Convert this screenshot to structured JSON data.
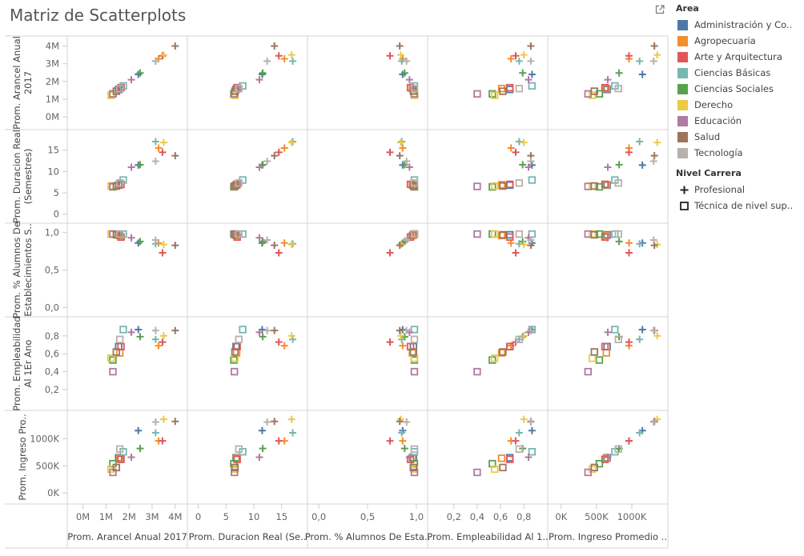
{
  "title": "Matriz de Scatterplots",
  "legend": {
    "area_title": "Area",
    "areas": [
      {
        "label": "Administración y Co..",
        "color": "#4E79A7"
      },
      {
        "label": "Agropecuaria",
        "color": "#F28E2B"
      },
      {
        "label": "Arte y Arquitectura",
        "color": "#E15759"
      },
      {
        "label": "Ciencias Básicas",
        "color": "#76B7B2"
      },
      {
        "label": "Ciencias Sociales",
        "color": "#59A14F"
      },
      {
        "label": "Derecho",
        "color": "#EDC948"
      },
      {
        "label": "Educación",
        "color": "#B07AA1"
      },
      {
        "label": "Salud",
        "color": "#9C755F"
      },
      {
        "label": "Tecnología",
        "color": "#BAB0AC"
      }
    ],
    "level_title": "Nivel Carrera",
    "levels": [
      {
        "label": "Profesional",
        "shape": "plus"
      },
      {
        "label": "Técnica de nivel sup..",
        "shape": "square"
      }
    ]
  },
  "chart_data": {
    "type": "scatter",
    "layout": "scatterplot-matrix",
    "variables": [
      {
        "key": "arancel",
        "label": "Prom. Arancel Anual 2017",
        "x_label": "Prom. Arancel Anual 2017",
        "y_label_lines": [
          "Prom. Arancel Anual",
          "2017"
        ],
        "range": [
          -400000,
          4250000
        ],
        "ticks": [
          0,
          1000000,
          2000000,
          3000000,
          4000000
        ],
        "tick_labels": [
          "0M",
          "1M",
          "2M",
          "3M",
          "4M"
        ]
      },
      {
        "key": "duracion",
        "label": "Prom. Duracion Real (Semestres)",
        "x_label": "Prom. Duracion Real (Se..",
        "y_label_lines": [
          "Prom. Duracion Real",
          "(Semestres)"
        ],
        "range": [
          -0.8,
          18.5
        ],
        "ticks": [
          0,
          5,
          10,
          15
        ],
        "tick_labels": [
          "0",
          "5",
          "10",
          "15"
        ]
      },
      {
        "key": "alumnos",
        "label": "Prom. % Alumnos De Establecimientos S..",
        "x_label": "Prom. % Alumnos De Esta..",
        "y_label_lines": [
          "Prom. % Alumnos De",
          "Establecimientos S.."
        ],
        "range": [
          -0.05,
          1.05
        ],
        "ticks": [
          0,
          0.5,
          1.0
        ],
        "tick_labels": [
          "0,0",
          "0,5",
          "1,0"
        ]
      },
      {
        "key": "empleabilidad",
        "label": "Prom. Empleabilidad Al 1Er Ano",
        "x_label": "Prom. Empleabilidad Al 1..",
        "y_label_lines": [
          "Prom. Empleabilidad",
          "Al 1Er Ano"
        ],
        "range": [
          0.03,
          0.95
        ],
        "ticks": [
          0.2,
          0.4,
          0.6,
          0.8
        ],
        "tick_labels": [
          "0,2",
          "0,4",
          "0,6",
          "0,8"
        ]
      },
      {
        "key": "ingreso",
        "label": "Prom. Ingreso Promedio",
        "x_label": "Prom. Ingreso Promedio ..",
        "y_label_lines": [
          "Prom. Ingreso Pro.."
        ],
        "range": [
          -100000,
          1420000
        ],
        "ticks": [
          0,
          500000,
          1000000
        ],
        "tick_labels": [
          "0K",
          "500K",
          "1000K"
        ]
      }
    ],
    "points": [
      {
        "area": "Administración y Co..",
        "level": "Profesional",
        "arancel": 2400000,
        "duracion": 11.5,
        "alumnos": 0.86,
        "empleabilidad": 0.87,
        "ingreso": 1150000
      },
      {
        "area": "Administración y Co..",
        "level": "Técnica de nivel sup..",
        "arancel": 1550000,
        "duracion": 6.8,
        "alumnos": 0.97,
        "empleabilidad": 0.68,
        "ingreso": 650000
      },
      {
        "area": "Agropecuaria",
        "level": "Profesional",
        "arancel": 3280000,
        "duracion": 15.5,
        "alumnos": 0.86,
        "empleabilidad": 0.69,
        "ingreso": 960000
      },
      {
        "area": "Agropecuaria",
        "level": "Técnica de nivel sup..",
        "arancel": 1600000,
        "duracion": 6.9,
        "alumnos": 0.96,
        "empleabilidad": 0.61,
        "ingreso": 640000
      },
      {
        "area": "Arte y Arquitectura",
        "level": "Profesional",
        "arancel": 3450000,
        "duracion": 14.5,
        "alumnos": 0.73,
        "empleabilidad": 0.73,
        "ingreso": 960000
      },
      {
        "area": "Arte y Arquitectura",
        "level": "Técnica de nivel sup..",
        "arancel": 1650000,
        "duracion": 7.0,
        "alumnos": 0.94,
        "empleabilidad": 0.68,
        "ingreso": 620000
      },
      {
        "area": "Ciencias Básicas",
        "level": "Profesional",
        "arancel": 3150000,
        "duracion": 17.0,
        "alumnos": 0.85,
        "empleabilidad": 0.76,
        "ingreso": 1110000
      },
      {
        "area": "Ciencias Básicas",
        "level": "Técnica de nivel sup..",
        "arancel": 1750000,
        "duracion": 8.0,
        "alumnos": 0.98,
        "empleabilidad": 0.87,
        "ingreso": 760000
      },
      {
        "area": "Ciencias Sociales",
        "level": "Profesional",
        "arancel": 2480000,
        "duracion": 11.6,
        "alumnos": 0.88,
        "empleabilidad": 0.79,
        "ingreso": 820000
      },
      {
        "area": "Ciencias Sociales",
        "level": "Técnica de nivel sup..",
        "arancel": 1300000,
        "duracion": 6.4,
        "alumnos": 0.98,
        "empleabilidad": 0.53,
        "ingreso": 540000
      },
      {
        "area": "Derecho",
        "level": "Profesional",
        "arancel": 3500000,
        "duracion": 16.8,
        "alumnos": 0.84,
        "empleabilidad": 0.8,
        "ingreso": 1360000
      },
      {
        "area": "Derecho",
        "level": "Técnica de nivel sup..",
        "arancel": 1220000,
        "duracion": 6.6,
        "alumnos": 0.98,
        "empleabilidad": 0.55,
        "ingreso": 440000
      },
      {
        "area": "Educación",
        "level": "Profesional",
        "arancel": 2100000,
        "duracion": 11.0,
        "alumnos": 0.93,
        "empleabilidad": 0.84,
        "ingreso": 660000
      },
      {
        "area": "Educación",
        "level": "Técnica de nivel sup..",
        "arancel": 1300000,
        "duracion": 6.5,
        "alumnos": 0.98,
        "empleabilidad": 0.4,
        "ingreso": 380000
      },
      {
        "area": "Salud",
        "level": "Profesional",
        "arancel": 4000000,
        "duracion": 13.7,
        "alumnos": 0.83,
        "empleabilidad": 0.86,
        "ingreso": 1320000
      },
      {
        "area": "Salud",
        "level": "Técnica de nivel sup..",
        "arancel": 1450000,
        "duracion": 6.6,
        "alumnos": 0.97,
        "empleabilidad": 0.62,
        "ingreso": 470000
      },
      {
        "area": "Tecnología",
        "level": "Profesional",
        "arancel": 3150000,
        "duracion": 12.4,
        "alumnos": 0.9,
        "empleabilidad": 0.86,
        "ingreso": 1310000
      },
      {
        "area": "Tecnología",
        "level": "Técnica de nivel sup..",
        "arancel": 1600000,
        "duracion": 7.3,
        "alumnos": 0.98,
        "empleabilidad": 0.76,
        "ingreso": 810000
      }
    ]
  }
}
